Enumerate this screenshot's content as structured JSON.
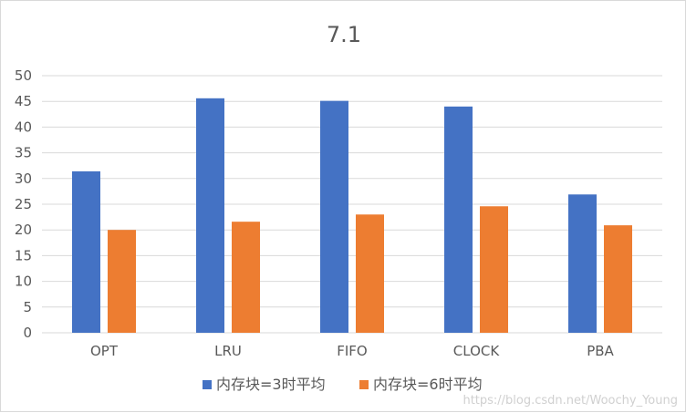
{
  "chart_data": {
    "type": "bar",
    "title": "7.1",
    "categories": [
      "OPT",
      "LRU",
      "FIFO",
      "CLOCK",
      "PBA"
    ],
    "series": [
      {
        "name": "内存块=3时平均",
        "values": [
          31.4,
          45.6,
          45.1,
          44.0,
          26.9
        ],
        "color": "#4472C4"
      },
      {
        "name": "内存块=6时平均",
        "values": [
          20.0,
          21.6,
          23.0,
          24.6,
          20.9
        ],
        "color": "#ED7D31"
      }
    ],
    "ylim": [
      0,
      50
    ],
    "yticks": [
      0,
      5,
      10,
      15,
      20,
      25,
      30,
      35,
      40,
      45,
      50
    ],
    "grid": true,
    "legend_position": "bottom",
    "xlabel": "",
    "ylabel": ""
  },
  "watermark": "https://blog.csdn.net/Woochy_Young"
}
